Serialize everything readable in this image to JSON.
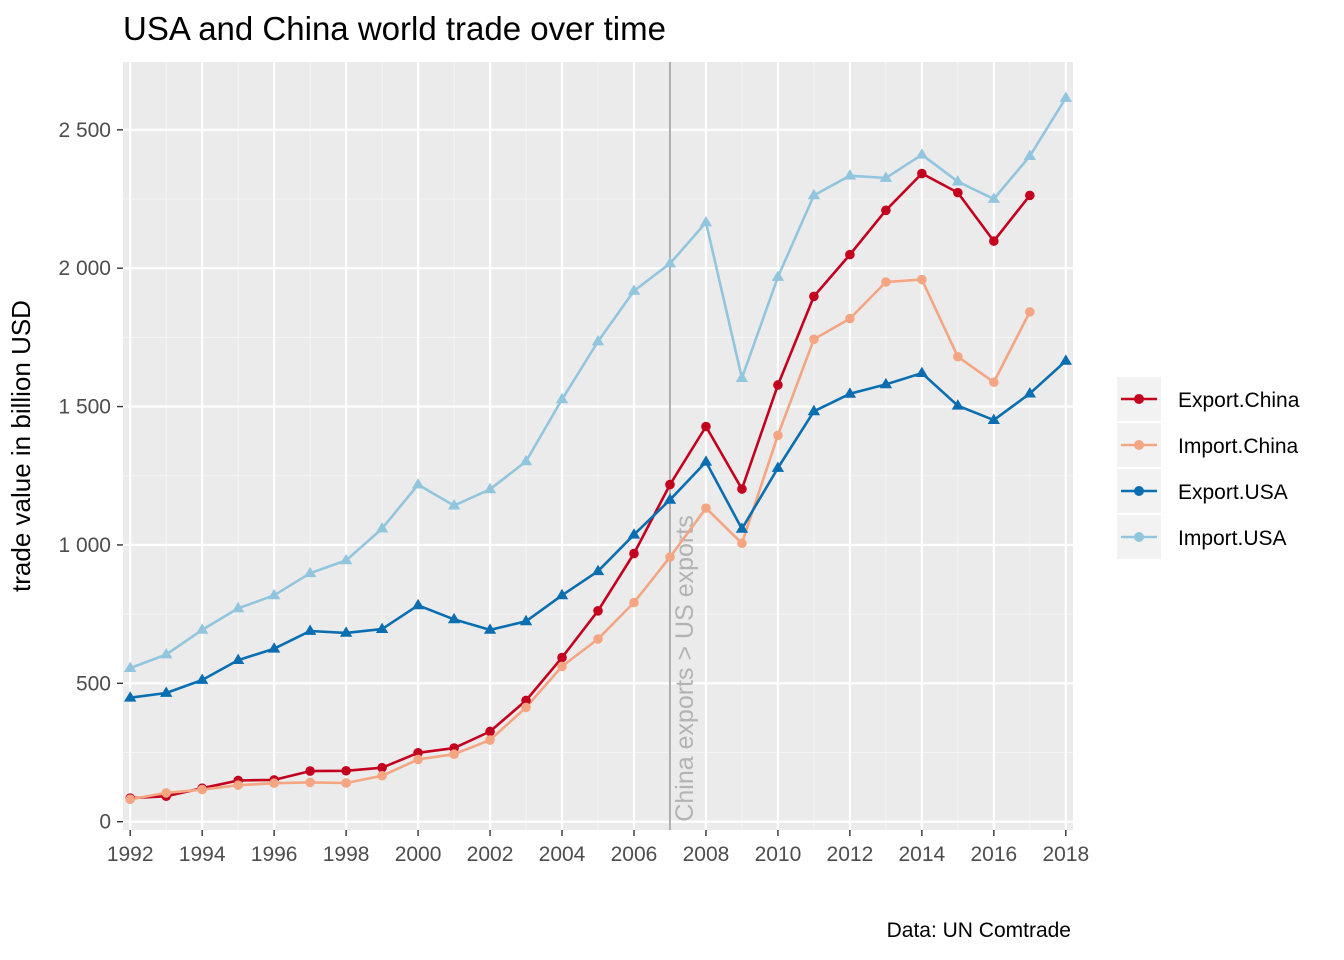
{
  "chart_data": {
    "type": "line",
    "title": "USA and China world trade over time",
    "ylabel": "trade value in billion USD",
    "xlabel": "",
    "caption": "Data: UN Comtrade",
    "xlim": [
      1991.8,
      2018.2
    ],
    "ylim": [
      -30,
      2745
    ],
    "x_ticks": [
      1992,
      1994,
      1996,
      1998,
      2000,
      2002,
      2004,
      2006,
      2008,
      2010,
      2012,
      2014,
      2016,
      2018
    ],
    "x_tick_labels": [
      "1992",
      "1994",
      "1996",
      "1998",
      "2000",
      "2002",
      "2004",
      "2006",
      "2008",
      "2010",
      "2012",
      "2014",
      "2016",
      "2018"
    ],
    "y_ticks": [
      0,
      500,
      1000,
      1500,
      2000,
      2500
    ],
    "y_tick_labels": [
      "0",
      "500",
      "1 000",
      "1 500",
      "2 000",
      "2 500"
    ],
    "grid": true,
    "legend_position": "right",
    "vline": {
      "x": 2007,
      "label": "China exports > US exports",
      "color": "#b3b3b3"
    },
    "x": [
      1992,
      1993,
      1994,
      1995,
      1996,
      1997,
      1998,
      1999,
      2000,
      2001,
      2002,
      2003,
      2004,
      2005,
      2006,
      2007,
      2008,
      2009,
      2010,
      2011,
      2012,
      2013,
      2014,
      2015,
      2016,
      2017,
      2018
    ],
    "series": [
      {
        "name": "Export.China",
        "color": "#c4001f",
        "marker": "circle",
        "values": [
          85,
          92,
          121,
          149,
          151,
          183,
          184,
          195,
          249,
          266,
          326,
          438,
          593,
          762,
          969,
          1218,
          1428,
          1202,
          1578,
          1898,
          2049,
          2209,
          2342,
          2273,
          2098,
          2263,
          null
        ]
      },
      {
        "name": "Import.China",
        "color": "#f4a582",
        "marker": "circle",
        "values": [
          81,
          104,
          116,
          132,
          139,
          142,
          140,
          166,
          225,
          244,
          295,
          413,
          561,
          660,
          792,
          956,
          1133,
          1006,
          1396,
          1743,
          1818,
          1950,
          1959,
          1680,
          1588,
          1842,
          null
        ]
      },
      {
        "name": "Export.USA",
        "color": "#0a6eb0",
        "marker": "triangle",
        "values": [
          448,
          465,
          512,
          584,
          625,
          689,
          682,
          696,
          782,
          731,
          693,
          724,
          818,
          905,
          1037,
          1163,
          1300,
          1058,
          1278,
          1483,
          1546,
          1580,
          1621,
          1503,
          1451,
          1547,
          1665
        ]
      },
      {
        "name": "Import.USA",
        "color": "#92c5de",
        "marker": "triangle",
        "values": [
          555,
          604,
          693,
          771,
          818,
          898,
          944,
          1059,
          1218,
          1142,
          1201,
          1302,
          1526,
          1735,
          1918,
          2017,
          2165,
          1603,
          1968,
          2263,
          2334,
          2326,
          2410,
          2313,
          2250,
          2405,
          2615
        ]
      }
    ]
  }
}
